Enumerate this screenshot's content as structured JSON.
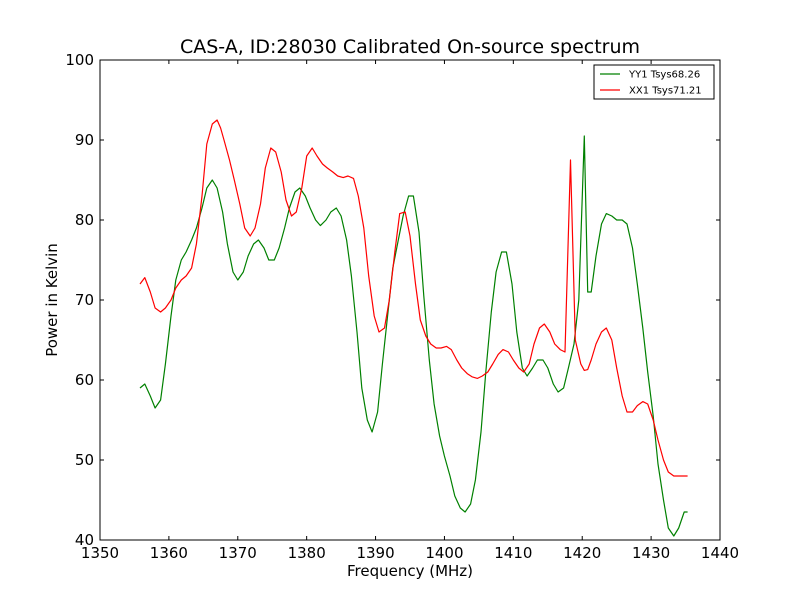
{
  "chart_data": {
    "type": "line",
    "title": "CAS-A, ID:28030 Calibrated On-source spectrum",
    "xlabel": "Frequency (MHz)",
    "ylabel": "Power in Kelvin",
    "xlim": [
      1350,
      1440
    ],
    "ylim": [
      40,
      100
    ],
    "xticks": [
      1350,
      1360,
      1370,
      1380,
      1390,
      1400,
      1410,
      1420,
      1430,
      1440
    ],
    "yticks": [
      40,
      50,
      60,
      70,
      80,
      90,
      100
    ],
    "grid": false,
    "legend_position": "top-right",
    "series": [
      {
        "name": "YY1 Tsys68.26",
        "color": "#008000",
        "x": [
          1355.8,
          1356.5,
          1357.3,
          1358.0,
          1358.8,
          1359.5,
          1360.3,
          1361.0,
          1361.8,
          1362.5,
          1363.3,
          1364.0,
          1364.8,
          1365.5,
          1366.3,
          1367.0,
          1367.8,
          1368.5,
          1369.3,
          1370.0,
          1370.8,
          1371.5,
          1372.3,
          1373.0,
          1373.8,
          1374.5,
          1375.3,
          1376.0,
          1376.8,
          1377.5,
          1378.3,
          1379.0,
          1379.8,
          1380.5,
          1381.3,
          1382.0,
          1382.8,
          1383.5,
          1384.3,
          1385.0,
          1385.8,
          1386.5,
          1387.3,
          1388.0,
          1388.8,
          1389.5,
          1390.3,
          1391.0,
          1391.8,
          1392.5,
          1393.3,
          1394.0,
          1394.8,
          1395.5,
          1396.3,
          1397.0,
          1397.8,
          1398.5,
          1399.3,
          1400.0,
          1400.8,
          1401.5,
          1402.3,
          1403.0,
          1403.8,
          1404.5,
          1405.3,
          1406.0,
          1406.8,
          1407.5,
          1408.3,
          1409.0,
          1409.8,
          1410.5,
          1411.3,
          1412.0,
          1412.8,
          1413.5,
          1414.3,
          1415.0,
          1415.8,
          1416.5,
          1417.3,
          1418.0,
          1418.8,
          1419.5,
          1420.3,
          1420.8,
          1421.3,
          1422.0,
          1422.8,
          1423.5,
          1424.3,
          1425.0,
          1425.8,
          1426.5,
          1427.3,
          1428.0,
          1428.8,
          1429.5,
          1430.3,
          1431.0,
          1431.8,
          1432.5,
          1433.3,
          1434.0,
          1434.8,
          1435.3
        ],
        "values": [
          59.0,
          59.5,
          58.0,
          56.5,
          57.5,
          62.0,
          68.0,
          72.5,
          75.0,
          76.0,
          77.5,
          79.0,
          81.5,
          84.0,
          85.0,
          84.0,
          81.0,
          77.0,
          73.5,
          72.5,
          73.5,
          75.5,
          77.0,
          77.5,
          76.5,
          75.0,
          75.0,
          76.5,
          79.0,
          81.5,
          83.5,
          84.0,
          83.0,
          81.5,
          80.0,
          79.3,
          80.0,
          81.0,
          81.5,
          80.5,
          77.5,
          73.0,
          66.0,
          59.0,
          55.0,
          53.5,
          56.0,
          62.0,
          68.5,
          74.0,
          77.5,
          80.5,
          83.0,
          83.0,
          78.5,
          70.5,
          62.5,
          57.0,
          53.0,
          50.5,
          48.0,
          45.5,
          44.0,
          43.5,
          44.5,
          47.5,
          53.5,
          61.0,
          68.5,
          73.5,
          76.0,
          76.0,
          72.0,
          66.0,
          61.5,
          60.5,
          61.5,
          62.5,
          62.5,
          61.5,
          59.5,
          58.5,
          59.0,
          61.5,
          64.5,
          70.0,
          90.5,
          71.0,
          71.0,
          75.5,
          79.5,
          80.8,
          80.5,
          80.0,
          80.0,
          79.5,
          76.5,
          72.0,
          66.5,
          61.0,
          55.5,
          49.5,
          45.0,
          41.5,
          40.5,
          41.5,
          43.5,
          43.5
        ]
      },
      {
        "name": "XX1 Tsys71.21",
        "color": "#ff0000",
        "x": [
          1355.8,
          1356.5,
          1357.3,
          1358.0,
          1358.8,
          1359.5,
          1360.3,
          1361.0,
          1361.8,
          1362.5,
          1363.3,
          1364.0,
          1364.8,
          1365.5,
          1366.3,
          1367.0,
          1367.5,
          1368.0,
          1368.8,
          1369.5,
          1370.3,
          1371.0,
          1371.8,
          1372.5,
          1373.3,
          1374.0,
          1374.8,
          1375.5,
          1376.3,
          1377.0,
          1377.8,
          1378.5,
          1379.3,
          1380.0,
          1380.8,
          1381.5,
          1382.3,
          1383.0,
          1383.8,
          1384.5,
          1385.3,
          1386.0,
          1386.8,
          1387.5,
          1388.3,
          1389.0,
          1389.8,
          1390.5,
          1391.3,
          1392.0,
          1392.8,
          1393.5,
          1394.3,
          1395.0,
          1395.8,
          1396.5,
          1397.3,
          1398.0,
          1398.8,
          1399.5,
          1400.3,
          1401.0,
          1401.8,
          1402.5,
          1403.3,
          1404.0,
          1404.8,
          1405.5,
          1406.3,
          1407.0,
          1407.8,
          1408.5,
          1409.3,
          1410.0,
          1410.8,
          1411.5,
          1412.3,
          1413.0,
          1413.8,
          1414.5,
          1415.3,
          1416.0,
          1416.8,
          1417.5,
          1418.3,
          1419.0,
          1419.8,
          1420.3,
          1420.8,
          1421.3,
          1422.0,
          1422.8,
          1423.5,
          1424.3,
          1425.0,
          1425.8,
          1426.5,
          1427.3,
          1428.0,
          1428.8,
          1429.5,
          1430.3,
          1431.0,
          1431.8,
          1432.5,
          1433.3,
          1434.0,
          1434.8,
          1435.3
        ],
        "values": [
          72.0,
          72.8,
          71.0,
          69.0,
          68.5,
          69.0,
          70.0,
          71.5,
          72.5,
          73.0,
          74.0,
          77.0,
          83.0,
          89.5,
          92.0,
          92.5,
          91.5,
          90.0,
          87.5,
          85.0,
          82.0,
          79.0,
          78.0,
          79.0,
          82.0,
          86.5,
          89.0,
          88.5,
          86.0,
          82.5,
          80.5,
          81.0,
          84.0,
          88.0,
          89.0,
          88.0,
          87.0,
          86.5,
          86.0,
          85.5,
          85.3,
          85.5,
          85.2,
          83.0,
          79.0,
          73.0,
          68.0,
          66.0,
          66.5,
          70.0,
          76.0,
          80.8,
          81.0,
          78.0,
          72.0,
          67.5,
          65.5,
          64.5,
          64.0,
          64.0,
          64.2,
          63.8,
          62.5,
          61.5,
          60.8,
          60.4,
          60.2,
          60.5,
          61.0,
          62.0,
          63.2,
          63.8,
          63.5,
          62.5,
          61.5,
          61.0,
          62.0,
          64.5,
          66.5,
          67.0,
          66.0,
          64.5,
          63.8,
          63.5,
          87.5,
          65.0,
          62.0,
          61.2,
          61.3,
          62.5,
          64.5,
          66.0,
          66.5,
          65.0,
          61.5,
          58.0,
          56.0,
          56.0,
          56.8,
          57.3,
          57.0,
          55.0,
          52.5,
          50.0,
          48.5,
          48.0,
          48.0,
          48.0,
          48.0
        ]
      }
    ]
  }
}
